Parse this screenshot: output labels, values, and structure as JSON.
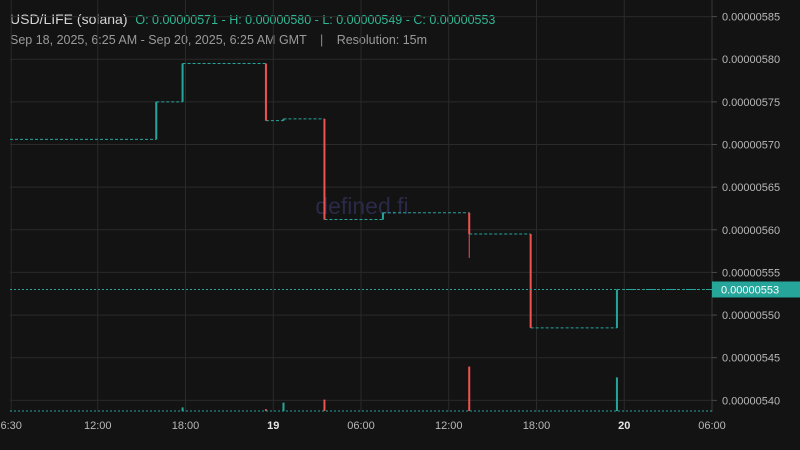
{
  "header": {
    "symbol": "USD/LIFE (solana)",
    "ohlc": "O: 0.00000571 - H: 0.00000580 - L: 0.00000549 - C: 0.00000553",
    "range": "Sep 18, 2025, 6:25 AM - Sep 20, 2025, 6:25 AM GMT",
    "separator": "|",
    "resolution": "Resolution: 15m"
  },
  "watermark": "defined.fi",
  "colors": {
    "background": "#131313",
    "grid": "#2a2a2a",
    "up": "#26a69a",
    "down": "#ef5350",
    "last_price": "#26a69a"
  },
  "chart_data": {
    "type": "candlestick",
    "title": "USD/LIFE (solana)",
    "x_axis": {
      "type": "time",
      "range_hours": [
        0,
        48
      ],
      "start_label": "Sep 18, 2025, 6:25 AM GMT",
      "ticks": [
        {
          "hour": 0.08,
          "label": "6:30",
          "bold": false
        },
        {
          "hour": 6,
          "label": "12:00",
          "bold": false
        },
        {
          "hour": 12,
          "label": "18:00",
          "bold": false
        },
        {
          "hour": 18,
          "label": "19",
          "bold": true
        },
        {
          "hour": 24,
          "label": "06:00",
          "bold": false
        },
        {
          "hour": 30,
          "label": "12:00",
          "bold": false
        },
        {
          "hour": 36,
          "label": "18:00",
          "bold": false
        },
        {
          "hour": 42,
          "label": "20",
          "bold": true
        },
        {
          "hour": 48,
          "label": "06:00",
          "bold": false
        }
      ]
    },
    "y_axis": {
      "position": "right",
      "range": [
        5.3942e-06,
        5.8548e-06
      ],
      "ticks": [
        "0.00000540",
        "0.00000545",
        "0.00000550",
        "0.00000555",
        "0.00000560",
        "0.00000565",
        "0.00000570",
        "0.00000575",
        "0.00000580",
        "0.00000585"
      ]
    },
    "last_price": {
      "value": 5.53e-06,
      "label": "0.00000553"
    },
    "price_segments": [
      {
        "t0": 0,
        "t1": 10,
        "price": 5.706e-06
      },
      {
        "t0": 10,
        "t1": 11.8,
        "price": 5.75e-06
      },
      {
        "t0": 11.8,
        "t1": 17.5,
        "price": 5.795e-06
      },
      {
        "t0": 17.5,
        "t1": 18.7,
        "price": 5.728e-06
      },
      {
        "t0": 18.7,
        "t1": 21.5,
        "price": 5.73e-06
      },
      {
        "t0": 21.5,
        "t1": 25.5,
        "price": 5.612e-06
      },
      {
        "t0": 25.5,
        "t1": 31.4,
        "price": 5.62e-06
      },
      {
        "t0": 31.4,
        "t1": 35.6,
        "price": 5.595e-06
      },
      {
        "t0": 35.6,
        "t1": 41.5,
        "price": 5.485e-06
      },
      {
        "t0": 41.5,
        "t1": 48.6,
        "price": 5.53e-06
      }
    ],
    "candles": [
      {
        "t": 10,
        "o": 5.706e-06,
        "h": 5.75e-06,
        "l": 5.706e-06,
        "c": 5.75e-06
      },
      {
        "t": 11.8,
        "o": 5.75e-06,
        "h": 5.795e-06,
        "l": 5.75e-06,
        "c": 5.795e-06
      },
      {
        "t": 17.5,
        "o": 5.795e-06,
        "h": 5.795e-06,
        "l": 5.728e-06,
        "c": 5.728e-06
      },
      {
        "t": 18.7,
        "o": 5.728e-06,
        "h": 5.73e-06,
        "l": 5.728e-06,
        "c": 5.73e-06
      },
      {
        "t": 21.5,
        "o": 5.73e-06,
        "h": 5.73e-06,
        "l": 5.612e-06,
        "c": 5.612e-06
      },
      {
        "t": 25.5,
        "o": 5.612e-06,
        "h": 5.62e-06,
        "l": 5.612e-06,
        "c": 5.62e-06
      },
      {
        "t": 31.4,
        "o": 5.62e-06,
        "h": 5.62e-06,
        "l": 5.567e-06,
        "c": 5.595e-06
      },
      {
        "t": 35.6,
        "o": 5.595e-06,
        "h": 5.595e-06,
        "l": 5.485e-06,
        "c": 5.485e-06
      },
      {
        "t": 41.5,
        "o": 5.485e-06,
        "h": 5.53e-06,
        "l": 5.485e-06,
        "c": 5.53e-06
      }
    ],
    "volume": [
      {
        "t": 11.8,
        "rel": 0.06,
        "dir": "up"
      },
      {
        "t": 17.5,
        "rel": 0.03,
        "dir": "down"
      },
      {
        "t": 18.7,
        "rel": 0.14,
        "dir": "up"
      },
      {
        "t": 21.5,
        "rel": 0.19,
        "dir": "down"
      },
      {
        "t": 31.4,
        "rel": 0.74,
        "dir": "down"
      },
      {
        "t": 41.5,
        "rel": 0.56,
        "dir": "up"
      }
    ]
  }
}
